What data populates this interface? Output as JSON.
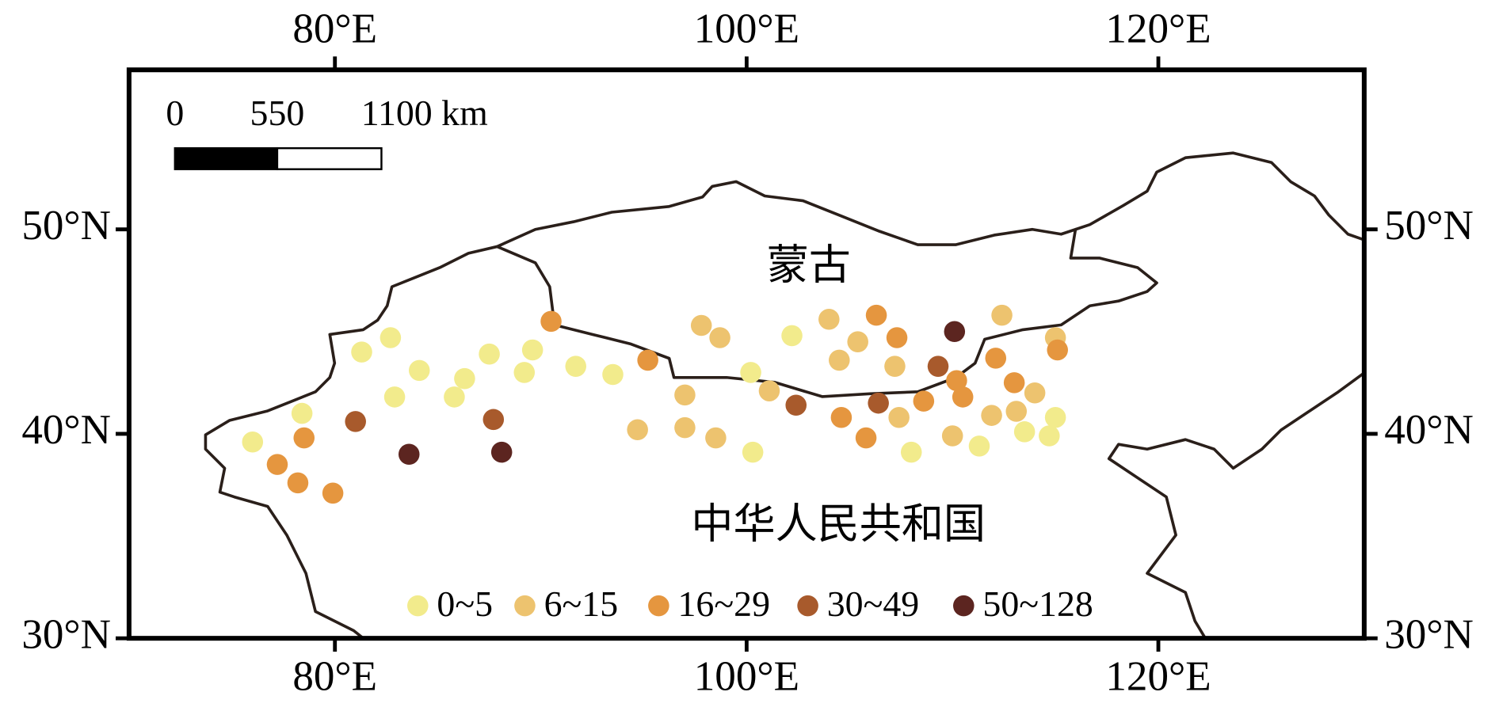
{
  "chart_data": {
    "type": "scatter",
    "xlim": [
      70,
      130
    ],
    "ylim": [
      30,
      57.8
    ],
    "xticks": [
      {
        "value": 80,
        "label": "80°E"
      },
      {
        "value": 100,
        "label": "100°E"
      },
      {
        "value": 120,
        "label": "120°E"
      }
    ],
    "yticks": [
      {
        "value": 30,
        "label": "30°N"
      },
      {
        "value": 40,
        "label": "40°N"
      },
      {
        "value": 50,
        "label": "50°N"
      }
    ],
    "annotations": [
      "蒙古",
      "中华人民共和国"
    ],
    "scale_bar": [
      "0",
      "550",
      "1100 km"
    ],
    "series": [
      {
        "name": "0~5",
        "color": "#f2eb8c",
        "x": [
          76.0,
          78.4,
          81.3,
          82.7,
          82.9,
          84.1,
          85.8,
          86.3,
          87.5,
          89.2,
          89.6,
          91.7,
          93.5,
          100.2,
          100.3,
          102.2,
          108.0,
          111.3,
          113.5,
          114.7,
          115.0
        ],
        "values": [
          39.6,
          41.0,
          44.0,
          44.7,
          41.8,
          43.1,
          41.8,
          42.7,
          43.9,
          43.0,
          44.1,
          43.3,
          42.9,
          43.0,
          39.1,
          44.8,
          39.1,
          39.4,
          40.1,
          39.9,
          40.8
        ]
      },
      {
        "name": "6~15",
        "color": "#edc36f",
        "x": [
          94.7,
          97.0,
          97.0,
          97.8,
          98.5,
          98.7,
          101.1,
          104.0,
          104.5,
          105.4,
          107.2,
          107.4,
          110.0,
          111.9,
          112.4,
          113.1,
          114.0,
          115.0
        ],
        "values": [
          40.2,
          41.9,
          40.3,
          45.3,
          39.8,
          44.7,
          42.1,
          45.6,
          43.6,
          44.5,
          43.3,
          40.8,
          39.9,
          40.9,
          45.8,
          41.1,
          42.0,
          44.7
        ]
      },
      {
        "name": "16~29",
        "color": "#e5963f",
        "x": [
          77.2,
          78.2,
          78.5,
          79.9,
          90.5,
          95.2,
          104.6,
          105.8,
          106.3,
          107.3,
          108.6,
          110.2,
          110.5,
          112.1,
          113.0,
          115.1
        ],
        "values": [
          38.5,
          37.6,
          39.8,
          37.1,
          45.5,
          43.6,
          40.8,
          39.8,
          45.8,
          44.7,
          41.6,
          42.6,
          41.8,
          43.7,
          42.5,
          44.1
        ]
      },
      {
        "name": "30~49",
        "color": "#a85a2c",
        "x": [
          81.0,
          87.7,
          102.4,
          106.4,
          109.3
        ],
        "values": [
          40.6,
          40.7,
          41.4,
          41.5,
          43.3
        ]
      },
      {
        "name": "50~128",
        "color": "#5c2520",
        "x": [
          83.6,
          88.1,
          110.1
        ],
        "values": [
          39.0,
          39.1,
          45.0
        ]
      }
    ]
  }
}
